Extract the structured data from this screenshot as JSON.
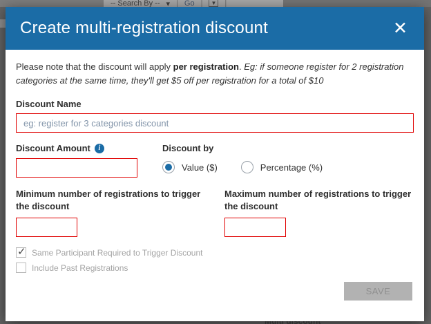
{
  "background": {
    "search_by_label": "-- Search By --",
    "go_label": "Go",
    "bottom_fragment": "Multi discount"
  },
  "icons": {
    "close": "✕",
    "info": "i",
    "check": "✓",
    "caret": "▾",
    "separator": "|",
    "filter": "▼"
  },
  "modal": {
    "title": "Create multi-registration discount",
    "intro": {
      "lead": "Please note that the discount will apply ",
      "bold": "per registration",
      "separator": ". ",
      "example": "Eg: if someone register for 2 registration categories at the same time, they'll get $5 off per registration for a total of $10"
    },
    "discount_name": {
      "label": "Discount Name",
      "placeholder": "eg: register for 3 categories discount",
      "value": ""
    },
    "discount_amount": {
      "label": "Discount Amount",
      "value": ""
    },
    "discount_by": {
      "label": "Discount by",
      "options": [
        {
          "label": "Value ($)",
          "selected": true
        },
        {
          "label": "Percentage (%)",
          "selected": false
        }
      ]
    },
    "min_registrations": {
      "label": "Minimum number of registrations to trigger the discount",
      "value": ""
    },
    "max_registrations": {
      "label": "Maximum number of registrations to trigger the discount",
      "value": ""
    },
    "checkboxes": [
      {
        "label": "Same Participant Required to Trigger Discount",
        "checked": true
      },
      {
        "label": "Include Past Registrations",
        "checked": false
      }
    ],
    "save_label": "SAVE"
  },
  "colors": {
    "header_blue": "#1b6ca6",
    "error_red": "#e00000",
    "disabled_gray": "#b2b2b2",
    "overlay": "#636363"
  }
}
